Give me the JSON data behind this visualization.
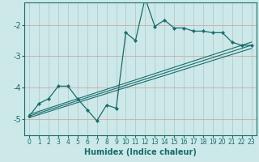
{
  "xlabel": "Humidex (Indice chaleur)",
  "ylabel": "",
  "bg_color": "#cce8e8",
  "grid_color": "#b0cccc",
  "line_color": "#1a6b6b",
  "xlim": [
    -0.5,
    23.5
  ],
  "ylim": [
    -5.5,
    -1.3
  ],
  "yticks": [
    -5,
    -4,
    -3,
    -2
  ],
  "xticks": [
    0,
    1,
    2,
    3,
    4,
    5,
    6,
    7,
    8,
    9,
    10,
    11,
    12,
    13,
    14,
    15,
    16,
    17,
    18,
    19,
    20,
    21,
    22,
    23
  ],
  "main_x": [
    0,
    1,
    2,
    3,
    4,
    5,
    6,
    7,
    8,
    9,
    10,
    11,
    12,
    13,
    14,
    15,
    16,
    17,
    18,
    19,
    20,
    21,
    22,
    23
  ],
  "main_y": [
    -4.9,
    -4.5,
    -4.35,
    -3.95,
    -3.95,
    -4.35,
    -4.7,
    -5.05,
    -4.55,
    -4.65,
    -2.25,
    -2.5,
    -1.15,
    -2.05,
    -1.85,
    -2.1,
    -2.1,
    -2.2,
    -2.2,
    -2.25,
    -2.25,
    -2.55,
    -2.65,
    -2.65
  ],
  "trend_lines": [
    {
      "x": [
        0,
        23
      ],
      "y": [
        -4.85,
        -2.55
      ]
    },
    {
      "x": [
        0,
        23
      ],
      "y": [
        -4.9,
        -2.65
      ]
    },
    {
      "x": [
        0,
        23
      ],
      "y": [
        -4.95,
        -2.75
      ]
    }
  ]
}
